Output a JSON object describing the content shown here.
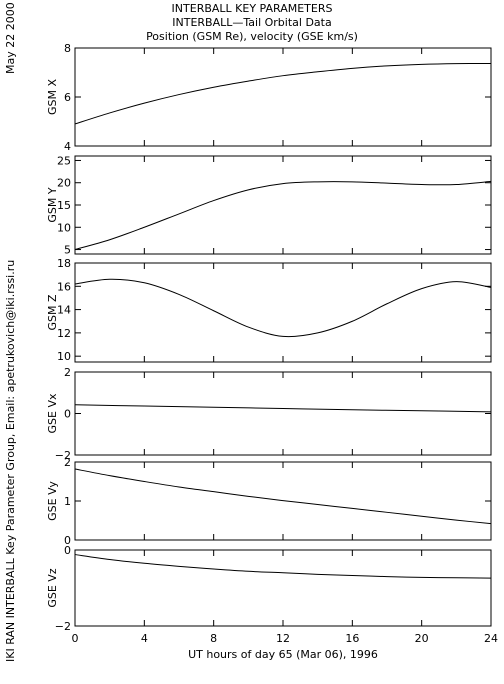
{
  "header": {
    "line1": "INTERBALL KEY PARAMETERS",
    "line2": "INTERBALL—Tail Orbital Data",
    "line3": "Position (GSM Re), velocity (GSE km/s)"
  },
  "side_texts": {
    "date": "May 22 2000",
    "credit": "IKI RAN INTERBALL Key Parameter Group, Email: apetrukovich@iki.rssi.ru"
  },
  "chart_data": {
    "type": "line",
    "xlabel": "UT hours of day  65 (Mar 06), 1996",
    "xlim": [
      0,
      24
    ],
    "xticks": [
      "0",
      "4",
      "8",
      "12",
      "16",
      "20",
      "24"
    ],
    "panels": [
      {
        "ylabel": "GSM X",
        "ylim": [
          4,
          8
        ],
        "yticks": [
          "4",
          "6",
          "8"
        ],
        "x": [
          0,
          2,
          4,
          6,
          8,
          10,
          12,
          14,
          16,
          18,
          20,
          22,
          24
        ],
        "values": [
          4.9,
          5.35,
          5.75,
          6.1,
          6.4,
          6.65,
          6.87,
          7.03,
          7.17,
          7.27,
          7.33,
          7.36,
          7.37
        ]
      },
      {
        "ylabel": "GSM Y",
        "ylim": [
          4,
          26
        ],
        "yticks": [
          "5",
          "10",
          "15",
          "20",
          "25"
        ],
        "x": [
          0,
          2,
          4,
          6,
          8,
          10,
          12,
          14,
          16,
          18,
          20,
          22,
          24
        ],
        "values": [
          5.0,
          7.2,
          10.0,
          13.0,
          16.0,
          18.4,
          19.8,
          20.2,
          20.2,
          19.9,
          19.6,
          19.6,
          20.3
        ]
      },
      {
        "ylabel": "GSM Z",
        "ylim": [
          9.5,
          18
        ],
        "yticks": [
          "10",
          "12",
          "14",
          "16",
          "18"
        ],
        "x": [
          0,
          2,
          4,
          6,
          8,
          10,
          12,
          14,
          16,
          18,
          20,
          22,
          24
        ],
        "values": [
          16.2,
          16.6,
          16.3,
          15.3,
          13.9,
          12.5,
          11.7,
          12.0,
          13.0,
          14.5,
          15.8,
          16.4,
          15.9
        ]
      },
      {
        "ylabel": "GSE Vx",
        "ylim": [
          -2,
          2
        ],
        "yticks": [
          "−2",
          "0",
          "2"
        ],
        "x": [
          0,
          4,
          8,
          12,
          16,
          20,
          24
        ],
        "values": [
          0.42,
          0.36,
          0.3,
          0.24,
          0.18,
          0.13,
          0.08
        ]
      },
      {
        "ylabel": "GSE Vy",
        "ylim": [
          0,
          2
        ],
        "yticks": [
          "0",
          "1",
          "2"
        ],
        "x": [
          0,
          2,
          4,
          6,
          8,
          10,
          12,
          14,
          16,
          18,
          20,
          22,
          24
        ],
        "values": [
          1.82,
          1.65,
          1.5,
          1.36,
          1.24,
          1.12,
          1.01,
          0.91,
          0.81,
          0.71,
          0.61,
          0.51,
          0.42
        ]
      },
      {
        "ylabel": "GSE Vz",
        "ylim": [
          -2,
          0
        ],
        "yticks": [
          "−2",
          "0"
        ],
        "x": [
          0,
          2,
          4,
          6,
          8,
          10,
          12,
          14,
          16,
          18,
          20,
          22,
          24
        ],
        "values": [
          -0.12,
          -0.25,
          -0.35,
          -0.43,
          -0.5,
          -0.56,
          -0.6,
          -0.64,
          -0.67,
          -0.7,
          -0.72,
          -0.73,
          -0.74
        ]
      }
    ],
    "grid": false,
    "line_color": "#000000"
  }
}
